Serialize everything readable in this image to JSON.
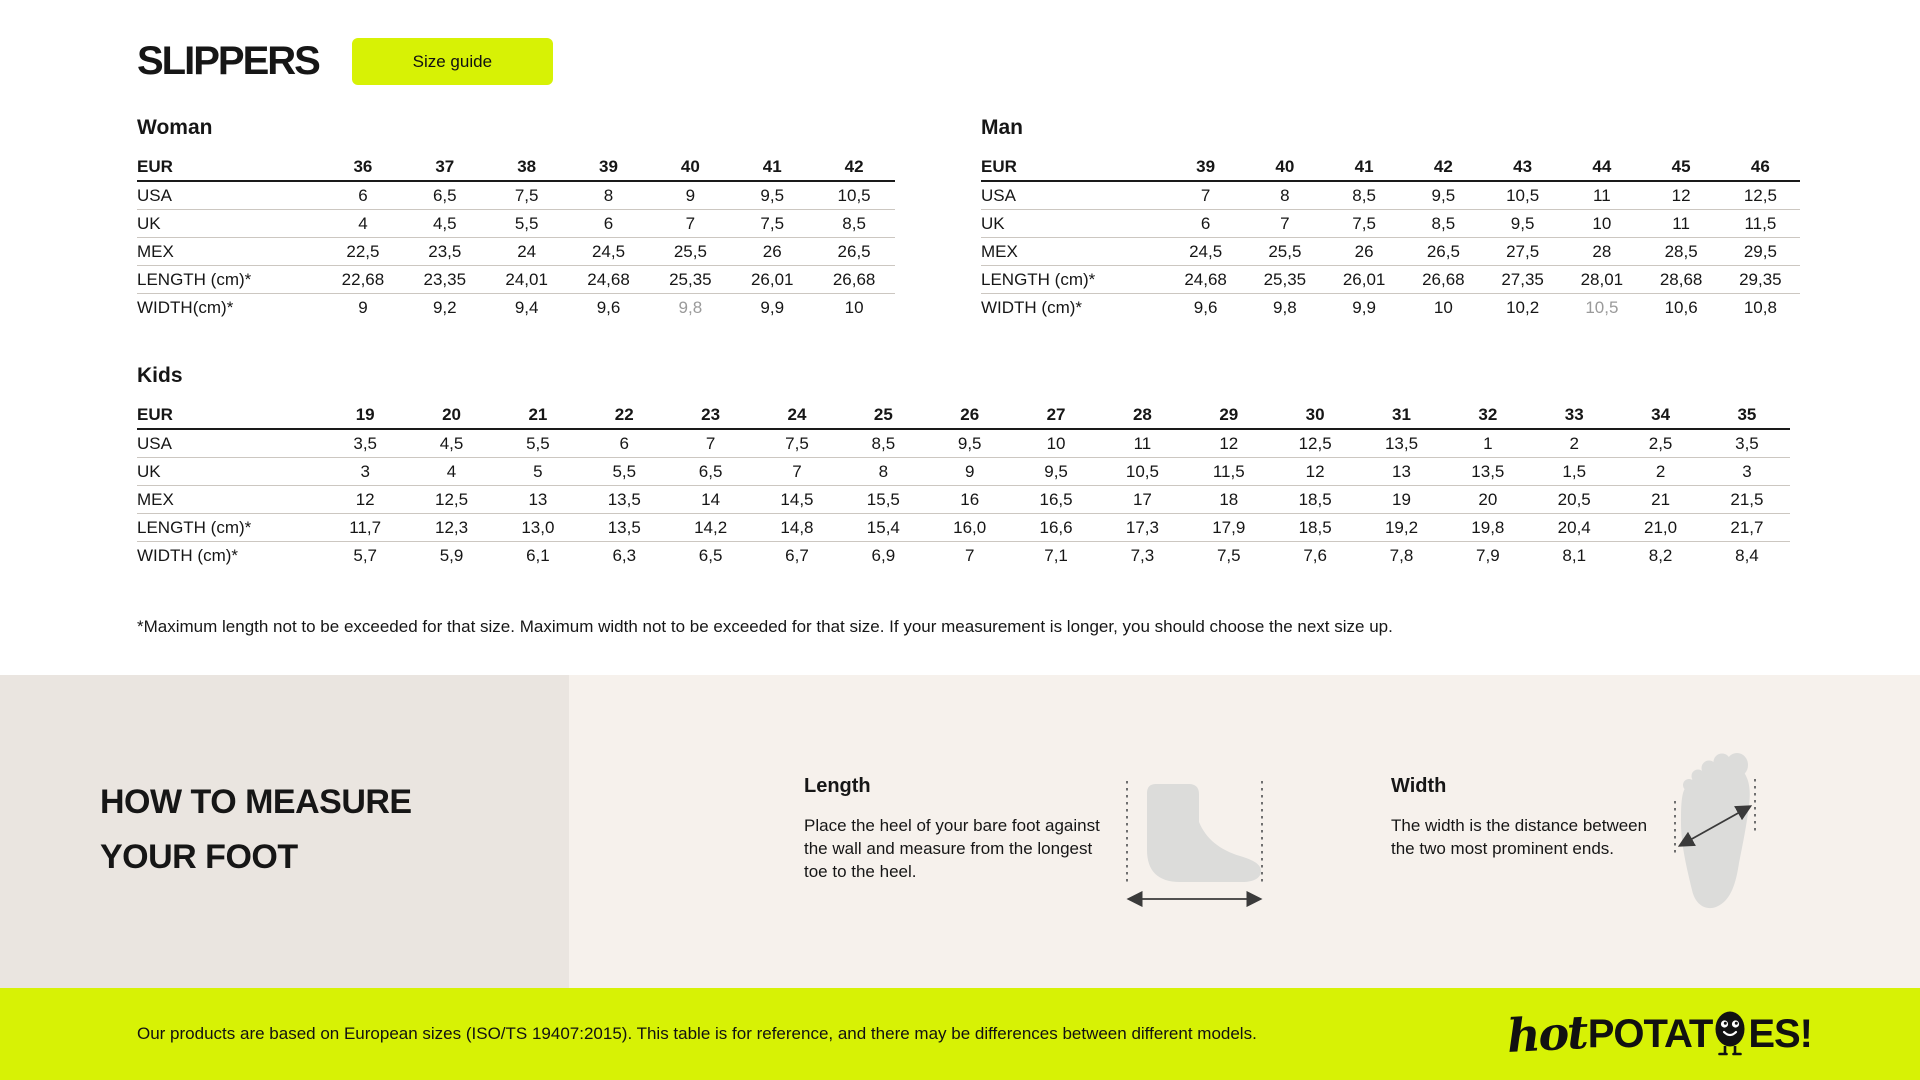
{
  "header": {
    "title": "SLIPPERS",
    "size_guide_button": "Size guide"
  },
  "colors": {
    "accent": "#d7f205",
    "muted_value": "#9a9a9a",
    "panel_dark": "#eae5e0",
    "panel_light": "#f6f1ec"
  },
  "tables": [
    {
      "id": "woman",
      "title": "Woman",
      "header_label": "EUR",
      "header_values": [
        "36",
        "37",
        "38",
        "39",
        "40",
        "41",
        "42"
      ],
      "rows": [
        {
          "label": "USA",
          "values": [
            "6",
            "6,5",
            "7,5",
            "8",
            "9",
            "9,5",
            "10,5"
          ]
        },
        {
          "label": "UK",
          "values": [
            "4",
            "4,5",
            "5,5",
            "6",
            "7",
            "7,5",
            "8,5"
          ]
        },
        {
          "label": "MEX",
          "values": [
            "22,5",
            "23,5",
            "24",
            "24,5",
            "25,5",
            "26",
            "26,5"
          ]
        },
        {
          "label": "LENGTH (cm)*",
          "values": [
            "22,68",
            "23,35",
            "24,01",
            "24,68",
            "25,35",
            "26,01",
            "26,68"
          ]
        },
        {
          "label": "WIDTH(cm)*",
          "values": [
            "9",
            "9,2",
            "9,4",
            "9,6",
            "9,8",
            "9,9",
            "10"
          ],
          "muted": [
            4
          ]
        }
      ]
    },
    {
      "id": "man",
      "title": "Man",
      "header_label": "EUR",
      "header_values": [
        "39",
        "40",
        "41",
        "42",
        "43",
        "44",
        "45",
        "46"
      ],
      "rows": [
        {
          "label": "USA",
          "values": [
            "7",
            "8",
            "8,5",
            "9,5",
            "10,5",
            "11",
            "12",
            "12,5"
          ]
        },
        {
          "label": "UK",
          "values": [
            "6",
            "7",
            "7,5",
            "8,5",
            "9,5",
            "10",
            "11",
            "11,5"
          ]
        },
        {
          "label": "MEX",
          "values": [
            "24,5",
            "25,5",
            "26",
            "26,5",
            "27,5",
            "28",
            "28,5",
            "29,5"
          ]
        },
        {
          "label": "LENGTH (cm)*",
          "values": [
            "24,68",
            "25,35",
            "26,01",
            "26,68",
            "27,35",
            "28,01",
            "28,68",
            "29,35"
          ]
        },
        {
          "label": "WIDTH (cm)*",
          "values": [
            "9,6",
            "9,8",
            "9,9",
            "10",
            "10,2",
            "10,5",
            "10,6",
            "10,8"
          ],
          "muted": [
            5
          ]
        }
      ]
    },
    {
      "id": "kids",
      "title": "Kids",
      "header_label": "EUR",
      "header_values": [
        "19",
        "20",
        "21",
        "22",
        "23",
        "24",
        "25",
        "26",
        "27",
        "28",
        "29",
        "30",
        "31",
        "32",
        "33",
        "34",
        "35"
      ],
      "rows": [
        {
          "label": "USA",
          "values": [
            "3,5",
            "4,5",
            "5,5",
            "6",
            "7",
            "7,5",
            "8,5",
            "9,5",
            "10",
            "11",
            "12",
            "12,5",
            "13,5",
            "1",
            "2",
            "2,5",
            "3,5"
          ]
        },
        {
          "label": "UK",
          "values": [
            "3",
            "4",
            "5",
            "5,5",
            "6,5",
            "7",
            "8",
            "9",
            "9,5",
            "10,5",
            "11,5",
            "12",
            "13",
            "13,5",
            "1,5",
            "2",
            "3"
          ]
        },
        {
          "label": "MEX",
          "values": [
            "12",
            "12,5",
            "13",
            "13,5",
            "14",
            "14,5",
            "15,5",
            "16",
            "16,5",
            "17",
            "18",
            "18,5",
            "19",
            "20",
            "20,5",
            "21",
            "21,5"
          ]
        },
        {
          "label": "LENGTH (cm)*",
          "values": [
            "11,7",
            "12,3",
            "13,0",
            "13,5",
            "14,2",
            "14,8",
            "15,4",
            "16,0",
            "16,6",
            "17,3",
            "17,9",
            "18,5",
            "19,2",
            "19,8",
            "20,4",
            "21,0",
            "21,7"
          ]
        },
        {
          "label": "WIDTH (cm)*",
          "values": [
            "5,7",
            "5,9",
            "6,1",
            "6,3",
            "6,5",
            "6,7",
            "6,9",
            "7",
            "7,1",
            "7,3",
            "7,5",
            "7,6",
            "7,8",
            "7,9",
            "8,1",
            "8,2",
            "8,4"
          ]
        }
      ]
    }
  ],
  "footnote": "*Maximum length not to be exceeded for that size. Maximum width not to be exceeded for that size. If your measurement is longer, you should choose the next size up.",
  "measure": {
    "heading_line1": "HOW TO MEASURE",
    "heading_line2": "YOUR FOOT",
    "length": {
      "title": "Length",
      "text": "Place the heel of your bare foot against the wall and measure from the longest toe to the heel."
    },
    "width": {
      "title": "Width",
      "text": "The width is the distance between the two most prominent ends."
    }
  },
  "footer": {
    "text": "Our products are based on European sizes (ISO/TS 19407:2015). This table is for reference, and there may be differences between different models.",
    "logo": {
      "script": "hot",
      "bold_left": "POTAT",
      "bold_right": "ES!"
    }
  }
}
